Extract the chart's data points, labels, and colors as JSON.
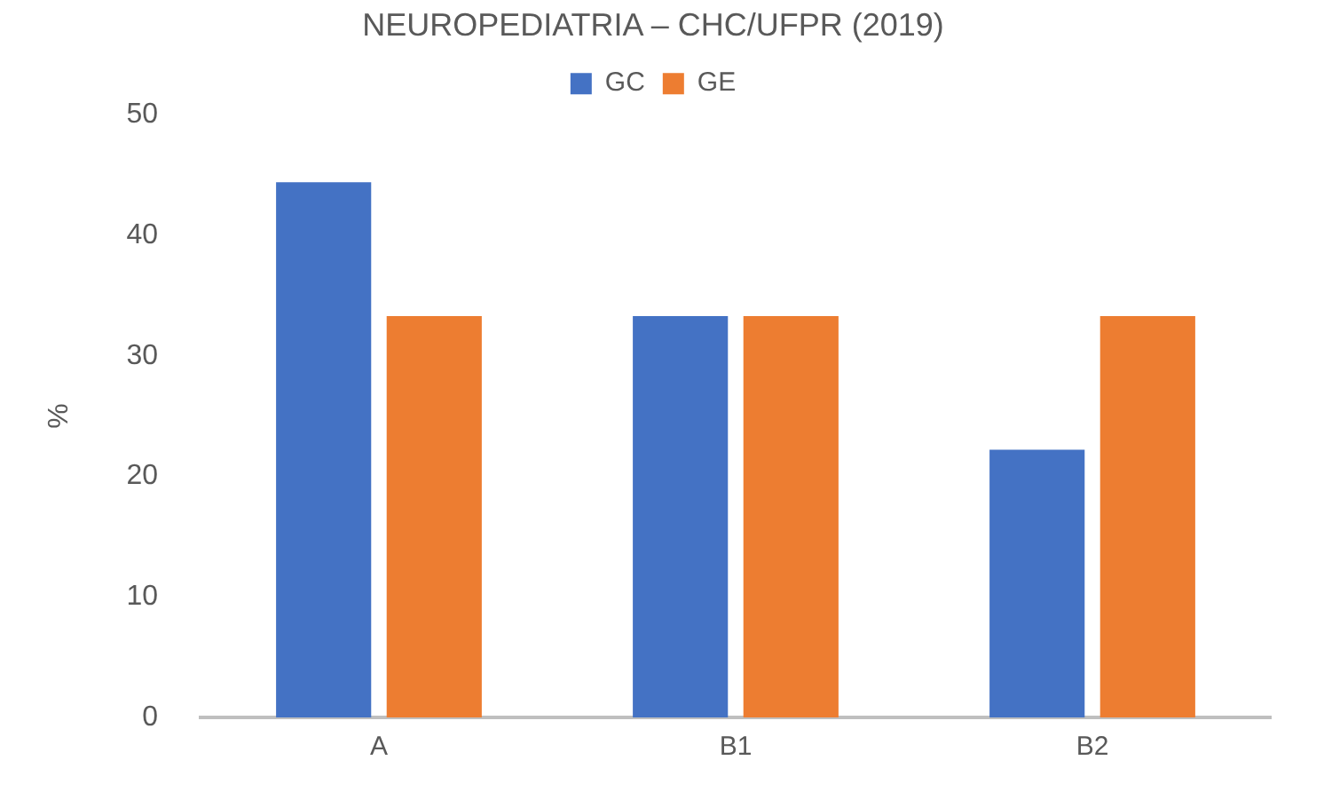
{
  "chart_data": {
    "type": "bar",
    "title": "NEUROPEDIATRIA – CHC/UFPR (2019)",
    "ylabel": "%",
    "categories": [
      "A",
      "B1",
      "B2"
    ],
    "series": [
      {
        "name": "GC",
        "color": "#4472c4",
        "values": [
          44.4,
          33.3,
          22.2
        ]
      },
      {
        "name": "GE",
        "color": "#ed7d31",
        "values": [
          33.3,
          33.3,
          33.3
        ]
      }
    ],
    "ylim": [
      0,
      50
    ],
    "yticks": [
      0,
      10,
      20,
      30,
      40,
      50
    ],
    "grid": false,
    "legend": "top"
  }
}
